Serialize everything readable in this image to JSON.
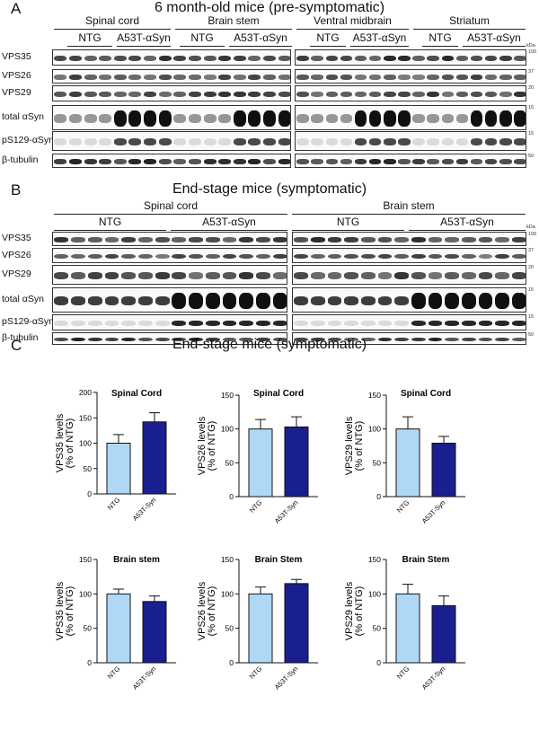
{
  "panels": {
    "A": {
      "letter": "A",
      "title": "6 month-old mice (pre-symptomatic)"
    },
    "B": {
      "letter": "B",
      "title": "End-stage mice (symptomatic)"
    },
    "C": {
      "letter": "C",
      "title": "End-stage mice (symptomatic)"
    }
  },
  "panelA": {
    "regions_left": [
      "Spinal cord",
      "Brain stem"
    ],
    "regions_right": [
      "Ventral midbrain",
      "Striatum"
    ],
    "groups_left": [
      "NTG",
      "A53T-αSyn",
      "NTG",
      "A53T-αSyn"
    ],
    "groups_right": [
      "NTG",
      "A53T-αSyn",
      "NTG",
      "A53T-αSyn"
    ],
    "rows": [
      "VPS35",
      "VPS26",
      "VPS29",
      "total αSyn",
      "pS129-αSyn",
      "β-tubulin"
    ],
    "mw_unit": "kDa",
    "mw": [
      "100",
      "37",
      "20",
      "15",
      "15",
      "50"
    ]
  },
  "panelB": {
    "regions": [
      "Spinal cord",
      "Brain stem"
    ],
    "groups": [
      "NTG",
      "A53T-αSyn",
      "NTG",
      "A53T-αSyn"
    ],
    "rows": [
      "VPS35",
      "VPS26",
      "VPS29",
      "total αSyn",
      "pS129-αSyn",
      "β-tubulin"
    ],
    "mw_unit": "kDa",
    "mw": [
      "100",
      "37",
      "20",
      "15",
      "15",
      "50"
    ]
  },
  "colors": {
    "ntg": "#aed8f5",
    "a53t": "#1a1f8f",
    "stroke": "#111111"
  },
  "chart_data": [
    {
      "type": "bar",
      "title": "Spinal Cord",
      "ylabel": [
        "VPS35 levels",
        "(% of NTG)"
      ],
      "categories": [
        "NTG",
        "A53T-Syn"
      ],
      "values": [
        100,
        142
      ],
      "errors": [
        17,
        18
      ],
      "ylim": [
        0,
        200
      ],
      "yticks": [
        "0",
        "50",
        "100",
        "150",
        "200"
      ]
    },
    {
      "type": "bar",
      "title": "Spinal Cord",
      "ylabel": [
        "VPS26 levels",
        "(% of NTG)"
      ],
      "categories": [
        "NTG",
        "A53T-Syn"
      ],
      "values": [
        100,
        103
      ],
      "errors": [
        14,
        15
      ],
      "ylim": [
        0,
        150
      ],
      "yticks": [
        "0",
        "50",
        "100",
        "150"
      ]
    },
    {
      "type": "bar",
      "title": "Spinal Cord",
      "ylabel": [
        "VPS29 levels",
        "(% of NTG)"
      ],
      "categories": [
        "NTG",
        "A53T-Syn"
      ],
      "values": [
        100,
        79
      ],
      "errors": [
        18,
        10
      ],
      "ylim": [
        0,
        150
      ],
      "yticks": [
        "0",
        "50",
        "100",
        "150"
      ]
    },
    {
      "type": "bar",
      "title": "Brain stem",
      "ylabel": [
        "VPS35 levels",
        "(% of NTG)"
      ],
      "categories": [
        "NTG",
        "A53T-Syn"
      ],
      "values": [
        100,
        89
      ],
      "errors": [
        7,
        8
      ],
      "ylim": [
        0,
        150
      ],
      "yticks": [
        "0",
        "50",
        "100",
        "150"
      ]
    },
    {
      "type": "bar",
      "title": "Brain Stem",
      "ylabel": [
        "VPS26 levels",
        "(% of NTG)"
      ],
      "categories": [
        "NTG",
        "A53T-Syn"
      ],
      "values": [
        100,
        115
      ],
      "errors": [
        10,
        6
      ],
      "ylim": [
        0,
        150
      ],
      "yticks": [
        "0",
        "50",
        "100",
        "150"
      ]
    },
    {
      "type": "bar",
      "title": "Brain Stem",
      "ylabel": [
        "VPS29 levels",
        "(% of NTG)"
      ],
      "categories": [
        "NTG",
        "A53T-Syn"
      ],
      "values": [
        100,
        83
      ],
      "errors": [
        14,
        14
      ],
      "ylim": [
        0,
        150
      ],
      "yticks": [
        "0",
        "50",
        "100",
        "150"
      ]
    }
  ]
}
